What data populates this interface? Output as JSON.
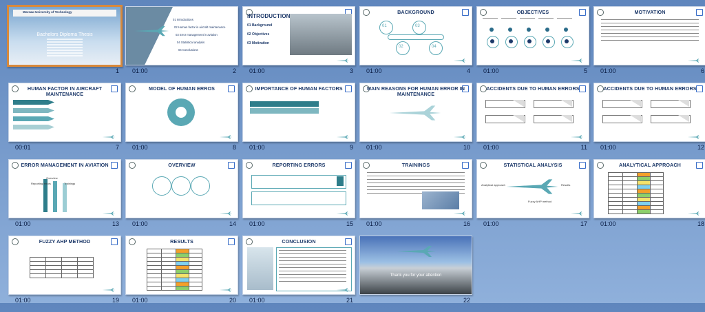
{
  "slides": [
    {
      "number": "1",
      "timing": "",
      "title": "Bachelors Diploma Thesis",
      "subtitle": "Warsaw University of Technology",
      "selected": true
    },
    {
      "number": "2",
      "timing": "01:00",
      "title": "",
      "items": [
        "01 Introductions",
        "02 Human factor in aircraft maintenance",
        "03 Error management in aviation",
        "04 Statistical analysis",
        "04 Conclusions"
      ]
    },
    {
      "number": "3",
      "timing": "01:00",
      "title": "INTRODUCTIONS",
      "items": [
        "01 Background",
        "02 Objectives",
        "03 Motivation"
      ]
    },
    {
      "number": "4",
      "timing": "01:00",
      "title": "BACKGROUND",
      "items": [
        "01",
        "02",
        "03",
        "04"
      ]
    },
    {
      "number": "5",
      "timing": "01:00",
      "title": "OBJECTIVES"
    },
    {
      "number": "6",
      "timing": "01:00",
      "title": "MOTIVATION"
    },
    {
      "number": "7",
      "timing": "00:01",
      "title": "HUMAN FACTOR IN AIRCRAFT MAINTENANCE"
    },
    {
      "number": "8",
      "timing": "01:00",
      "title": "MODEL OF HUMAN ERROS"
    },
    {
      "number": "9",
      "timing": "01:00",
      "title": "IMPORTANCE OF HUMAN FACTORS"
    },
    {
      "number": "10",
      "timing": "01:00",
      "title": "MAIN REASONS FOR HUMAN ERROR IN MAINTENANCE"
    },
    {
      "number": "11",
      "timing": "01:00",
      "title": "ACCIDENTS DUE TO HUMAN ERRORS"
    },
    {
      "number": "12",
      "timing": "01:00",
      "title": "ACCIDENTS DUE TO HUMAN ERRORS"
    },
    {
      "number": "13",
      "timing": "01:00",
      "title": "ERROR MANAGEMENT IN AVIATION",
      "items": [
        "Overview",
        "Reporting errors",
        "Trainings"
      ]
    },
    {
      "number": "14",
      "timing": "01:00",
      "title": "OVERVIEW"
    },
    {
      "number": "15",
      "timing": "01:00",
      "title": "REPORTING ERRORS"
    },
    {
      "number": "16",
      "timing": "01:00",
      "title": "TRAININGS"
    },
    {
      "number": "17",
      "timing": "01:00",
      "title": "STATISTICAL ANALYSIS",
      "items": [
        "Analytical approach",
        "Results",
        "Fuzzy AHP method"
      ]
    },
    {
      "number": "18",
      "timing": "01:00",
      "title": "ANALYTICAL APPROACH"
    },
    {
      "number": "19",
      "timing": "01:00",
      "title": "FUZZY AHP METHOD"
    },
    {
      "number": "20",
      "timing": "01:00",
      "title": "RESULTS"
    },
    {
      "number": "21",
      "timing": "01:00",
      "title": "CONCLUSION"
    },
    {
      "number": "22",
      "timing": "",
      "title": "Thank you for your attention"
    }
  ],
  "colors": {
    "accent": "#5aa8b4",
    "title": "#1e3a6a",
    "background": "#7da0cf",
    "selected_border": "#d8893b"
  }
}
